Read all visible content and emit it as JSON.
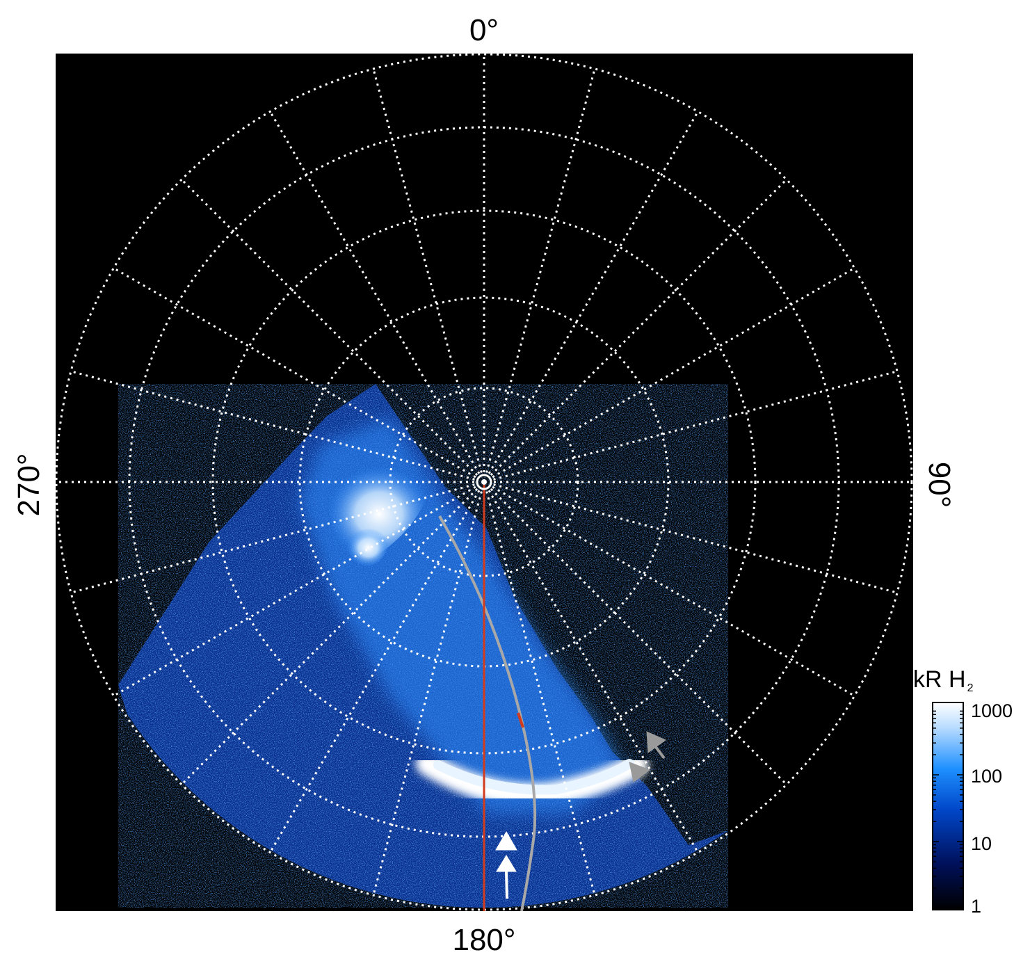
{
  "figure": {
    "angle_labels": {
      "top": "0°",
      "right": "90°",
      "bottom": "180°",
      "left": "270°"
    },
    "colorbar": {
      "title_main": "kR H",
      "title_sub": "2",
      "ticks": [
        "1000",
        "100",
        "10",
        "1"
      ],
      "colors": [
        "#000000",
        "#00105a",
        "#0046c8",
        "#1e90ff",
        "#b9dcff",
        "#ffffff"
      ]
    },
    "colors": {
      "background": "#000000",
      "grid": "#ffffff",
      "auroral_red": "#d23c1e",
      "track_gray": "#a8a8a8",
      "arrow_white": "#ffffff",
      "arrow_gray": "#9a9a9a"
    }
  }
}
